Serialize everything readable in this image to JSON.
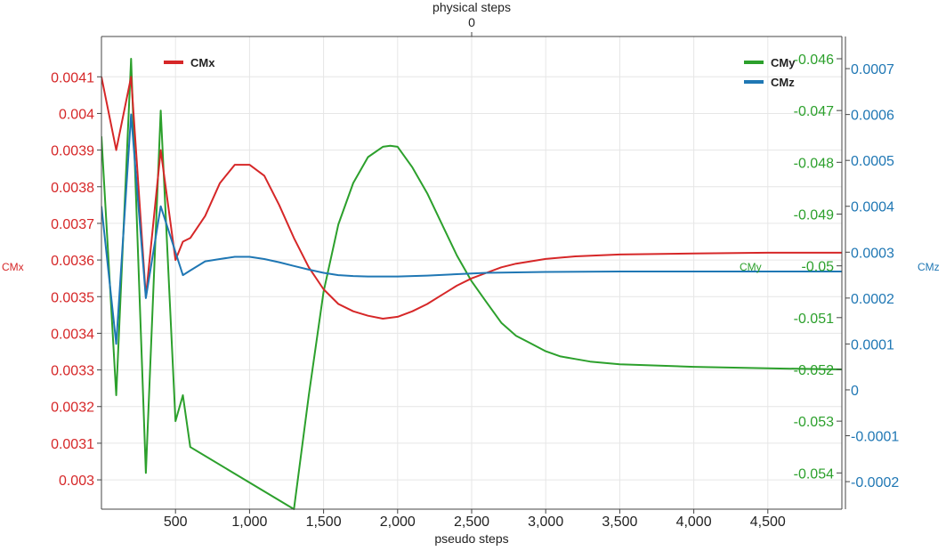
{
  "chart_data": {
    "type": "line",
    "title": "",
    "x_bottom": {
      "label": "pseudo steps",
      "range": [
        0,
        5000
      ],
      "ticks": [
        500,
        1000,
        1500,
        2000,
        2500,
        3000,
        3500,
        4000,
        4500
      ],
      "tick_labels": [
        "500",
        "1,000",
        "1,500",
        "2,000",
        "2,500",
        "3,000",
        "3,500",
        "4,000",
        "4,500"
      ]
    },
    "x_top": {
      "label": "physical steps",
      "ticks": [
        "0"
      ]
    },
    "y_left": {
      "label": "CMx",
      "color": "#d62728",
      "range": [
        0.00292,
        0.00421
      ],
      "ticks": [
        0.003,
        0.0031,
        0.0032,
        0.0033,
        0.0034,
        0.0035,
        0.0036,
        0.0037,
        0.0038,
        0.0039,
        0.004,
        0.0041
      ],
      "tick_labels": [
        "0.003",
        "0.0031",
        "0.0032",
        "0.0033",
        "0.0034",
        "0.0035",
        "0.0036",
        "0.0037",
        "0.0038",
        "0.0039",
        "0.004",
        "0.0041"
      ]
    },
    "y_right_inner": {
      "label": "CMy",
      "color": "#2ca02c",
      "range": [
        -0.0547,
        -0.04557
      ],
      "ticks": [
        -0.054,
        -0.053,
        -0.052,
        -0.051,
        -0.05,
        -0.049,
        -0.048,
        -0.047,
        -0.046
      ],
      "tick_labels": [
        "-0.054",
        "-0.053",
        "-0.052",
        "-0.051",
        "-0.05",
        "-0.049",
        "-0.048",
        "-0.047",
        "-0.046"
      ]
    },
    "y_right_outer": {
      "label": "CMz",
      "color": "#1f77b4",
      "range": [
        -0.00026,
        0.00077
      ],
      "ticks": [
        -0.0002,
        -0.0001,
        0,
        0.0001,
        0.0002,
        0.0003,
        0.0004,
        0.0005,
        0.0006,
        0.0007
      ],
      "tick_labels": [
        "-0.0002",
        "-0.0001",
        "0",
        "0.0001",
        "0.0002",
        "0.0003",
        "0.0004",
        "0.0005",
        "0.0006",
        "0.0007"
      ]
    },
    "grid": true,
    "legend": [
      {
        "name": "CMx",
        "color": "#d62728",
        "position": "top-left"
      },
      {
        "name": "CMy",
        "color": "#2ca02c",
        "position": "top-right"
      },
      {
        "name": "CMz",
        "color": "#1f77b4",
        "position": "top-right"
      }
    ],
    "series": [
      {
        "name": "CMx",
        "axis": "y_left",
        "color": "#d62728",
        "x": [
          0,
          100,
          200,
          300,
          400,
          500,
          550,
          600,
          700,
          800,
          900,
          1000,
          1100,
          1200,
          1300,
          1400,
          1500,
          1600,
          1700,
          1800,
          1900,
          2000,
          2100,
          2200,
          2300,
          2400,
          2500,
          2600,
          2700,
          2800,
          3000,
          3200,
          3500,
          4000,
          4500,
          5000
        ],
        "y": [
          0.0041,
          0.0039,
          0.0041,
          0.0035,
          0.0039,
          0.0036,
          0.00365,
          0.00366,
          0.00372,
          0.00381,
          0.00386,
          0.00386,
          0.00383,
          0.00375,
          0.00366,
          0.00358,
          0.00352,
          0.00348,
          0.00346,
          0.003448,
          0.00344,
          0.003445,
          0.00346,
          0.00348,
          0.003505,
          0.00353,
          0.00355,
          0.003565,
          0.00358,
          0.00359,
          0.003603,
          0.00361,
          0.003615,
          0.003618,
          0.00362,
          0.00362
        ]
      },
      {
        "name": "CMy",
        "axis": "y_right_inner",
        "color": "#2ca02c",
        "x": [
          0,
          100,
          200,
          300,
          400,
          500,
          550,
          600,
          1300,
          1400,
          1500,
          1600,
          1700,
          1800,
          1900,
          1950,
          2000,
          2100,
          2200,
          2300,
          2400,
          2500,
          2600,
          2700,
          2800,
          2900,
          3000,
          3100,
          3200,
          3300,
          3500,
          4000,
          4500,
          5000
        ],
        "y": [
          -0.0475,
          -0.0525,
          -0.046,
          -0.054,
          -0.047,
          -0.053,
          -0.0525,
          -0.0535,
          -0.0547,
          -0.0525,
          -0.0505,
          -0.0492,
          -0.0484,
          -0.0479,
          -0.0477,
          -0.04768,
          -0.0477,
          -0.0481,
          -0.0486,
          -0.0492,
          -0.0498,
          -0.0503,
          -0.0507,
          -0.0511,
          -0.05135,
          -0.0515,
          -0.05165,
          -0.05175,
          -0.0518,
          -0.05185,
          -0.0519,
          -0.05195,
          -0.05198,
          -0.052
        ]
      },
      {
        "name": "CMz",
        "axis": "y_right_outer",
        "color": "#1f77b4",
        "x": [
          0,
          100,
          200,
          300,
          400,
          500,
          550,
          600,
          700,
          800,
          900,
          1000,
          1100,
          1200,
          1300,
          1400,
          1500,
          1600,
          1700,
          1800,
          1900,
          2000,
          2200,
          2400,
          2600,
          2800,
          3000,
          3500,
          4000,
          4500,
          5000
        ],
        "y": [
          0.0004,
          0.0001,
          0.0006,
          0.0002,
          0.0004,
          0.0003,
          0.00025,
          0.00026,
          0.00028,
          0.000285,
          0.00029,
          0.00029,
          0.000285,
          0.000278,
          0.00027,
          0.000262,
          0.000255,
          0.00025,
          0.000248,
          0.000247,
          0.000247,
          0.000247,
          0.000249,
          0.000252,
          0.000255,
          0.000256,
          0.000257,
          0.000258,
          0.000258,
          0.000258,
          0.000258
        ]
      }
    ]
  }
}
